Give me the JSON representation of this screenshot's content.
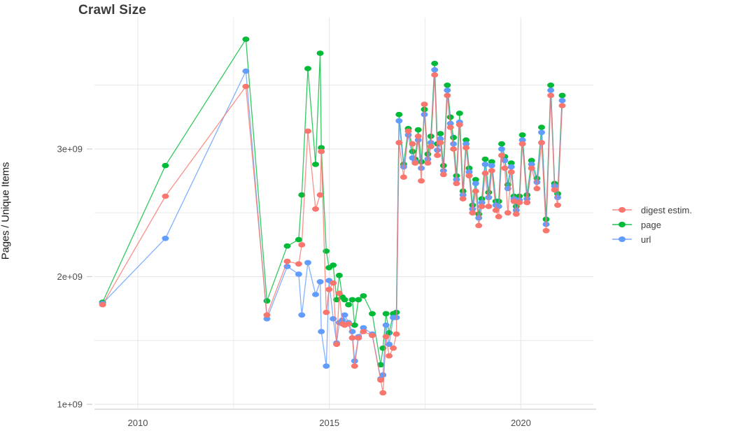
{
  "chart_data": {
    "type": "line",
    "title": "Crawl Size",
    "xlabel": "",
    "ylabel": "Pages / Unique Items",
    "legend_position": "right",
    "grid": true,
    "background": "#ffffff",
    "grid_color": "#e8e8e8",
    "axis_line_color": "#cfcfcf",
    "tick_text_color": "#4d4d4d",
    "xlim": [
      2008.85,
      2021.9
    ],
    "ylim": [
      0.96,
      4.0
    ],
    "y_ticks": [
      {
        "label": "1e+09",
        "value": 1
      },
      {
        "label": "2e+09",
        "value": 2
      },
      {
        "label": "3e+09",
        "value": 3
      }
    ],
    "y_minor": [
      1.5,
      2.5,
      3.5
    ],
    "x_ticks": [
      {
        "label": "2010",
        "value": 2010
      },
      {
        "label": "2015",
        "value": 2015
      },
      {
        "label": "2020",
        "value": 2020
      }
    ],
    "x_minor": [
      2012.5,
      2017.5
    ],
    "units": "billions of pages (1e9)",
    "x": [
      2009.08,
      2010.72,
      2012.82,
      2013.37,
      2013.9,
      2014.2,
      2014.28,
      2014.44,
      2014.64,
      2014.76,
      2014.79,
      2014.92,
      2014.99,
      2015.1,
      2015.19,
      2015.26,
      2015.34,
      2015.4,
      2015.5,
      2015.6,
      2015.66,
      2015.76,
      2015.89,
      2016.12,
      2016.34,
      2016.4,
      2016.48,
      2016.56,
      2016.67,
      2016.75,
      2016.82,
      2016.94,
      2017.06,
      2017.17,
      2017.24,
      2017.32,
      2017.4,
      2017.48,
      2017.57,
      2017.65,
      2017.75,
      2017.82,
      2017.9,
      2017.98,
      2018.08,
      2018.16,
      2018.24,
      2018.32,
      2018.4,
      2018.49,
      2018.57,
      2018.65,
      2018.74,
      2018.82,
      2018.9,
      2018.98,
      2019.07,
      2019.16,
      2019.24,
      2019.35,
      2019.42,
      2019.5,
      2019.58,
      2019.66,
      2019.75,
      2019.82,
      2019.88,
      2019.96,
      2020.04,
      2020.16,
      2020.28,
      2020.42,
      2020.54,
      2020.66,
      2020.78,
      2020.88,
      2020.96,
      2021.08
    ],
    "series": [
      {
        "name": "digest estim.",
        "color": "#F8766D",
        "values": [
          1.78,
          2.63,
          3.49,
          1.7,
          2.12,
          2.1,
          2.25,
          3.14,
          2.53,
          2.64,
          2.98,
          1.72,
          1.9,
          1.95,
          1.47,
          1.87,
          1.63,
          1.62,
          1.63,
          1.52,
          1.3,
          1.52,
          1.57,
          1.54,
          1.19,
          1.09,
          1.53,
          1.38,
          1.44,
          1.55,
          3.05,
          2.78,
          3.14,
          3.04,
          2.89,
          3.1,
          2.75,
          3.35,
          2.89,
          3.02,
          3.58,
          2.95,
          3.05,
          2.8,
          3.42,
          3.17,
          3.0,
          2.73,
          3.19,
          2.61,
          3.01,
          2.79,
          2.5,
          2.67,
          2.4,
          2.55,
          2.81,
          2.55,
          2.83,
          2.52,
          2.47,
          2.95,
          2.85,
          2.5,
          2.82,
          2.59,
          2.49,
          2.58,
          3.04,
          2.58,
          2.85,
          2.69,
          3.05,
          2.36,
          3.42,
          2.68,
          2.56,
          3.34
        ]
      },
      {
        "name": "page",
        "color": "#00BA38",
        "values": [
          1.8,
          2.87,
          3.86,
          1.81,
          2.24,
          2.29,
          2.64,
          3.63,
          2.88,
          3.75,
          3.01,
          2.2,
          2.07,
          2.09,
          1.82,
          2.01,
          1.84,
          1.82,
          1.78,
          1.82,
          1.62,
          1.82,
          1.85,
          1.71,
          1.31,
          1.44,
          1.71,
          1.56,
          1.71,
          1.72,
          3.27,
          2.88,
          3.16,
          2.98,
          2.92,
          3.15,
          2.9,
          3.31,
          2.96,
          3.1,
          3.67,
          3.04,
          3.12,
          2.87,
          3.5,
          3.25,
          3.09,
          2.79,
          3.28,
          2.67,
          3.07,
          2.85,
          2.56,
          2.76,
          2.49,
          2.61,
          2.92,
          2.66,
          2.9,
          2.59,
          2.59,
          3.04,
          2.94,
          2.72,
          2.89,
          2.63,
          2.55,
          2.63,
          3.11,
          2.64,
          2.91,
          2.77,
          3.17,
          2.45,
          3.5,
          2.73,
          2.65,
          3.42
        ]
      },
      {
        "name": "url",
        "color": "#619CFF",
        "values": [
          1.79,
          2.3,
          3.61,
          1.67,
          2.08,
          2.02,
          1.7,
          2.11,
          1.86,
          1.96,
          1.57,
          1.3,
          1.97,
          1.67,
          1.48,
          1.64,
          1.66,
          1.7,
          1.64,
          1.57,
          1.34,
          1.53,
          1.6,
          1.55,
          1.2,
          1.23,
          1.62,
          1.47,
          1.68,
          1.68,
          3.22,
          2.86,
          3.11,
          2.93,
          2.9,
          3.07,
          2.85,
          3.27,
          2.92,
          3.05,
          3.62,
          2.99,
          3.08,
          2.83,
          3.46,
          3.2,
          3.04,
          2.76,
          3.21,
          2.64,
          3.04,
          2.82,
          2.53,
          2.73,
          2.46,
          2.58,
          2.88,
          2.62,
          2.87,
          2.56,
          2.55,
          3.0,
          2.91,
          2.69,
          2.86,
          2.61,
          2.52,
          2.6,
          3.07,
          2.61,
          2.88,
          2.74,
          3.13,
          2.41,
          3.46,
          2.71,
          2.62,
          3.38
        ]
      }
    ],
    "legend_order": [
      "digest estim.",
      "page",
      "url"
    ],
    "draw_order": [
      "page",
      "url",
      "digest estim."
    ]
  }
}
